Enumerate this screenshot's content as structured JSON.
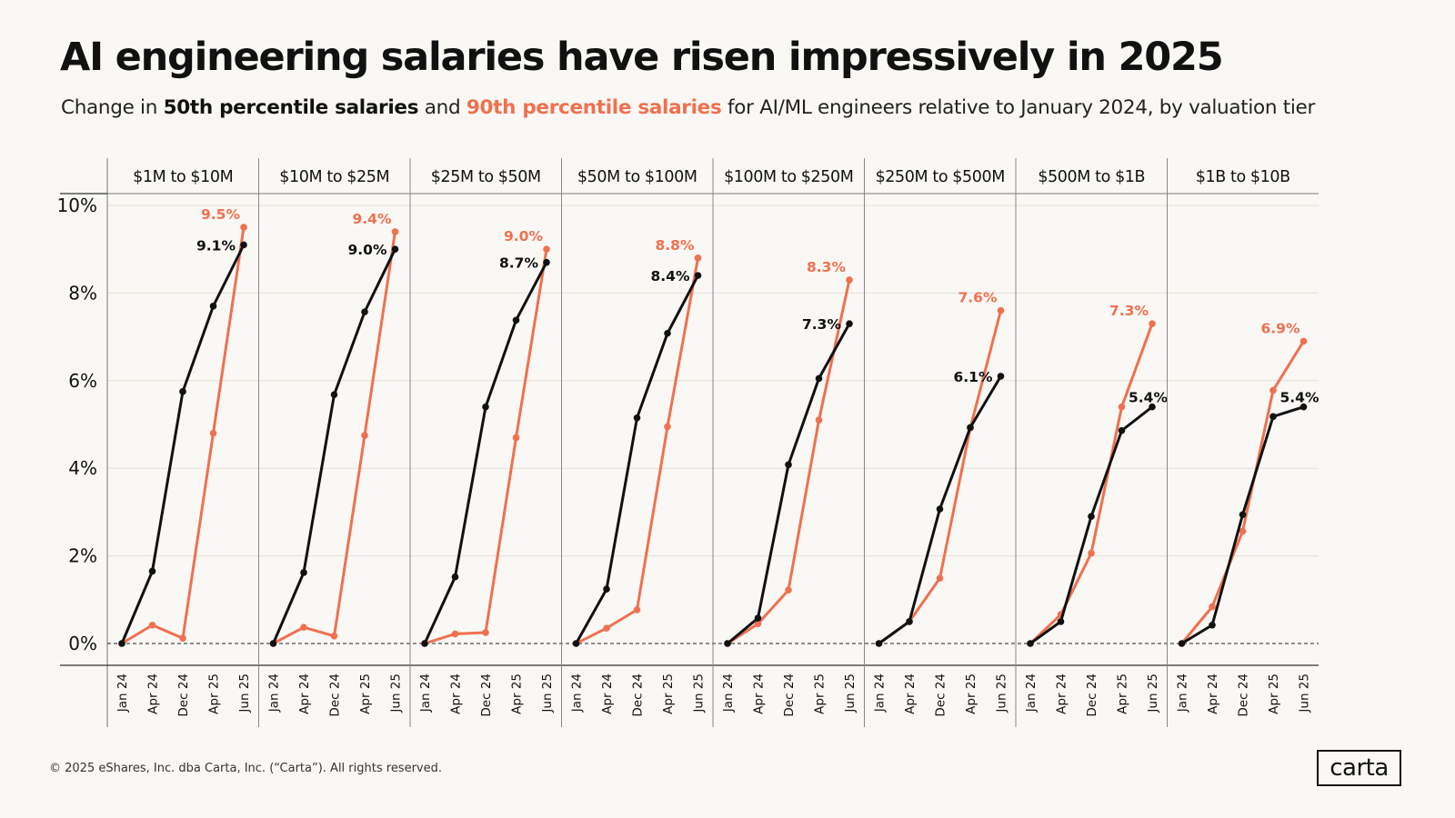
{
  "header": {
    "title": "AI engineering salaries have risen impressively in 2025",
    "subtitle_start": "Change in ",
    "subtitle_p50": "50th percentile salaries",
    "subtitle_mid": " and ",
    "subtitle_p90": "90th percentile salaries",
    "subtitle_end": " for AI/ML engineers relative to January 2024, by valuation tier"
  },
  "footer": {
    "copyright": "© 2025 eShares, Inc. dba Carta, Inc. (“Carta”). All rights reserved.",
    "logo_text": "carta"
  },
  "colors": {
    "p50": "#111111",
    "p90": "#f07050",
    "background": "#faf8f4"
  },
  "chart_data": {
    "type": "line",
    "y_ticks": [
      "0%",
      "2%",
      "4%",
      "6%",
      "8%",
      "10%"
    ],
    "ylim": [
      0,
      10
    ],
    "y_unit": "%",
    "x": [
      "Jan 24",
      "Apr 24",
      "Dec 24",
      "Apr 25",
      "Jun 25"
    ],
    "grid": true,
    "panels": [
      {
        "label": "$1M to $10M",
        "p50": [
          0,
          1.65,
          5.75,
          7.7,
          9.1
        ],
        "p90": [
          0,
          0.42,
          0.12,
          4.8,
          9.5
        ],
        "p50_label": "9.1%",
        "p90_label": "9.5%"
      },
      {
        "label": "$10M to $25M",
        "p50": [
          0,
          1.62,
          5.68,
          7.57,
          9.0
        ],
        "p90": [
          0,
          0.37,
          0.17,
          4.75,
          9.4
        ],
        "p50_label": "9.0%",
        "p90_label": "9.4%"
      },
      {
        "label": "$25M to $50M",
        "p50": [
          0,
          1.52,
          5.4,
          7.38,
          8.7
        ],
        "p90": [
          0,
          0.22,
          0.25,
          4.7,
          9.0
        ],
        "p50_label": "8.7%",
        "p90_label": "9.0%"
      },
      {
        "label": "$50M to $100M",
        "p50": [
          0,
          1.24,
          5.15,
          7.08,
          8.4
        ],
        "p90": [
          0,
          0.35,
          0.77,
          4.95,
          8.8
        ],
        "p50_label": "8.4%",
        "p90_label": "8.8%"
      },
      {
        "label": "$100M to $250M",
        "p50": [
          0,
          0.58,
          4.08,
          6.05,
          7.3
        ],
        "p90": [
          0,
          0.45,
          1.22,
          5.1,
          8.3
        ],
        "p50_label": "7.3%",
        "p90_label": "8.3%"
      },
      {
        "label": "$250M to $500M",
        "p50": [
          0,
          0.5,
          3.07,
          4.93,
          6.1
        ],
        "p90": [
          0,
          0.5,
          1.49,
          4.92,
          7.6
        ],
        "p50_label": "6.1%",
        "p90_label": "7.6%"
      },
      {
        "label": "$500M to $1B",
        "p50": [
          0,
          0.5,
          2.9,
          4.86,
          5.4
        ],
        "p90": [
          0,
          0.66,
          2.06,
          5.4,
          7.3
        ],
        "p50_label": "5.4%",
        "p90_label": "7.3%"
      },
      {
        "label": "$1B to $10B",
        "p50": [
          0,
          0.42,
          2.94,
          5.18,
          5.4
        ],
        "p90": [
          0,
          0.84,
          2.56,
          5.78,
          6.9
        ],
        "p50_label": "5.4%",
        "p90_label": "6.9%"
      }
    ]
  }
}
